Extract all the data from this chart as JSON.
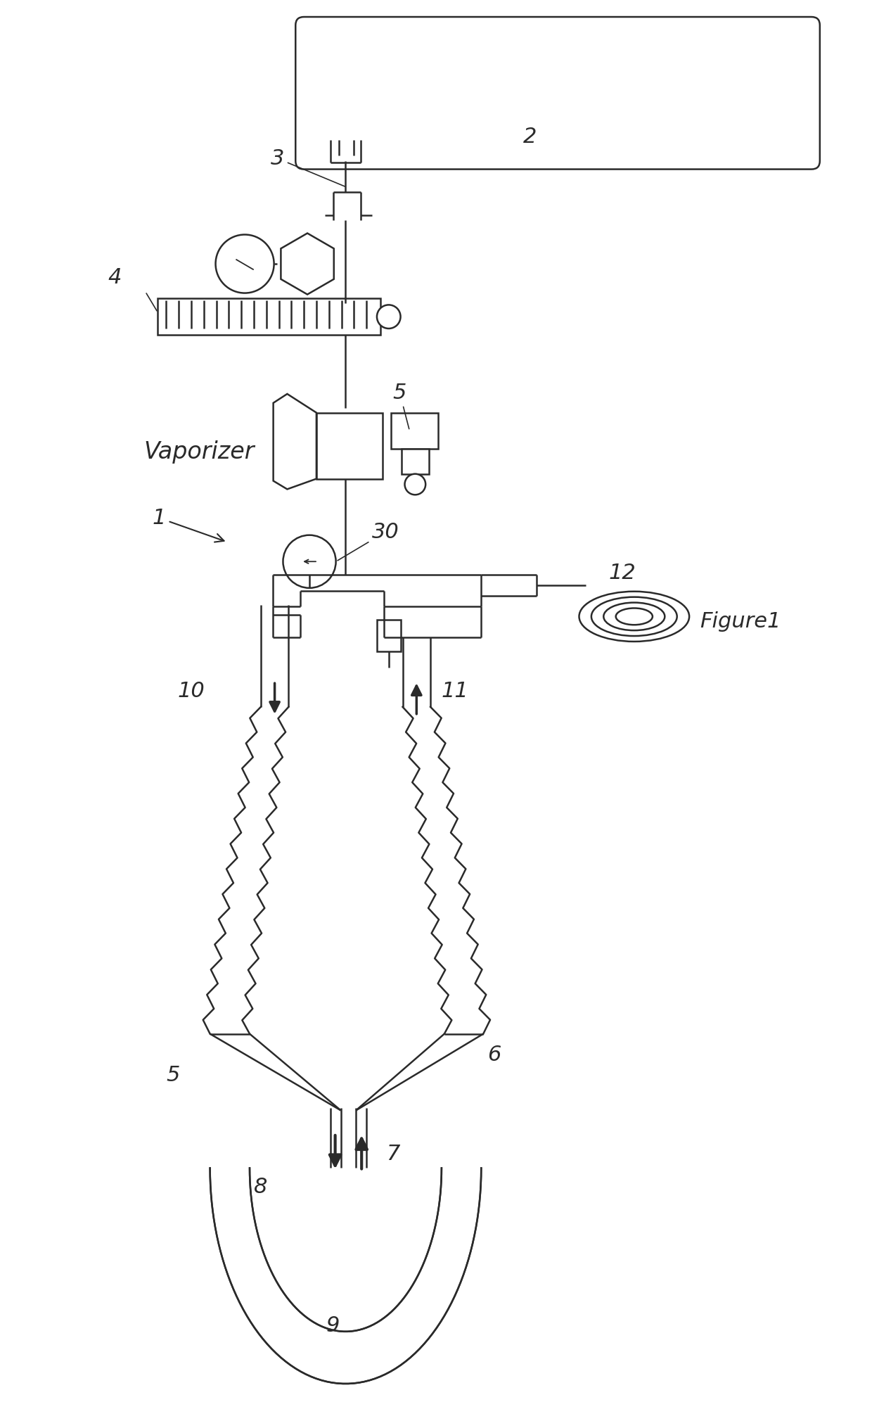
{
  "bg_color": "#ffffff",
  "line_color": "#2a2a2a",
  "text_color": "#2a2a2a",
  "figure1_label": "Figure1",
  "label_1": "1",
  "label_2": "2",
  "label_3": "3",
  "label_4": "4",
  "label_5": "5",
  "label_5b": "5",
  "label_6": "6",
  "label_7": "7",
  "label_8": "8",
  "label_9": "9",
  "label_10": "10",
  "label_11": "11",
  "label_12": "12",
  "label_30": "30",
  "vaporizer_label": "Vaporizer",
  "lw": 1.8,
  "fs": 20
}
